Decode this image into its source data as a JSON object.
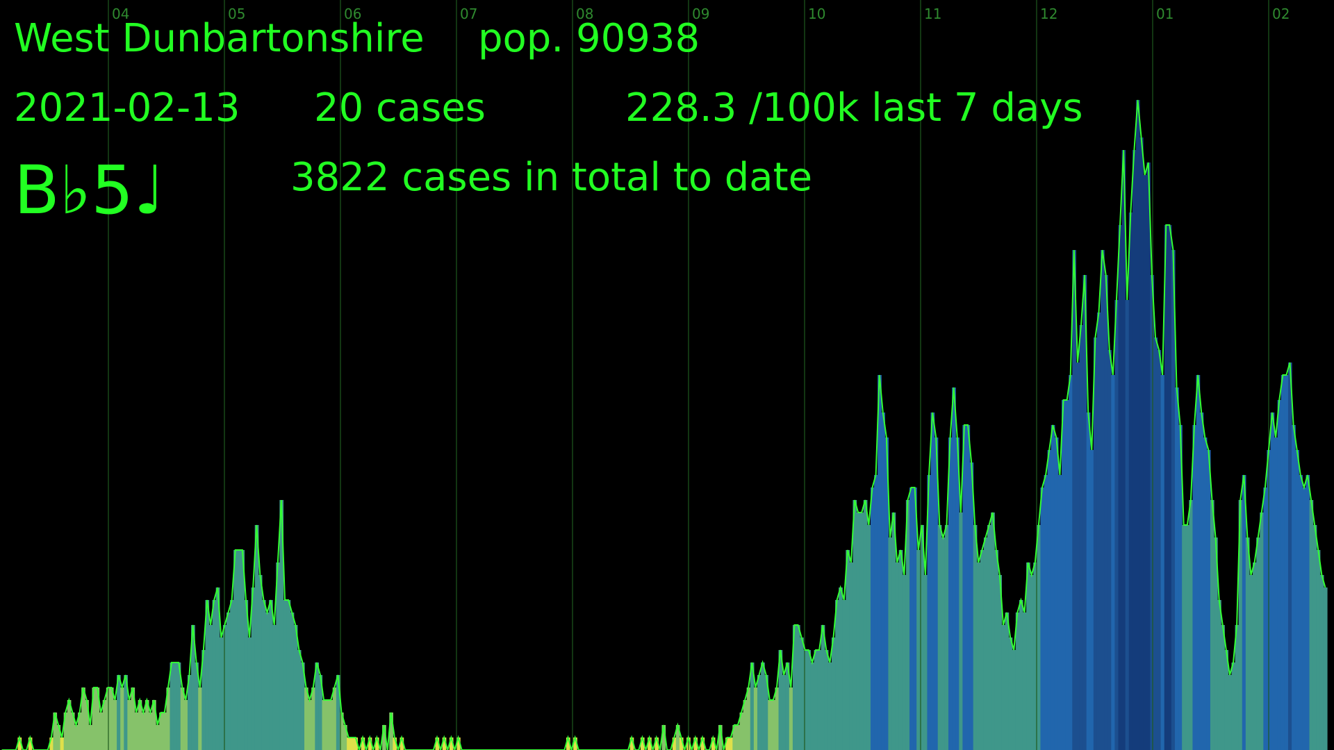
{
  "header": {
    "region": "West Dunbartonshire",
    "population": "pop. 90938",
    "date": "2021-02-13",
    "daily_cases": "20 cases",
    "rate": "228.3 /100k last 7 days",
    "total": "3822 cases in total to date",
    "note": "B♭5♩"
  },
  "colors": {
    "text": "#22ff22",
    "gridline": "#1f5a1f",
    "line": "#33ff33",
    "palette": [
      "#dfe04a",
      "#86c26a",
      "#3f978a",
      "#2166ad",
      "#143c7b",
      "#1c4f8f"
    ]
  },
  "chart_data": {
    "type": "bar",
    "month_ticks": [
      "04",
      "05",
      "06",
      "07",
      "08",
      "09",
      "10",
      "11",
      "12",
      "01",
      "02"
    ],
    "ylim": [
      0,
      60
    ],
    "grid": "vertical month lines",
    "series": [
      {
        "values": [
          0,
          0,
          0,
          0,
          0,
          1,
          0,
          0,
          1,
          0,
          0,
          0,
          0,
          0,
          1,
          3,
          2,
          1,
          3,
          4,
          3,
          2,
          3,
          5,
          4,
          2,
          5,
          5,
          3,
          4,
          5,
          5,
          4,
          6,
          5,
          6,
          4,
          5,
          3,
          4,
          3,
          4,
          3,
          4,
          2,
          3,
          3,
          5,
          7,
          7,
          7,
          5,
          4,
          6,
          10,
          7,
          5,
          8,
          12,
          10,
          12,
          13,
          9,
          10,
          11,
          12,
          16,
          16,
          16,
          12,
          9,
          13,
          18,
          14,
          12,
          11,
          12,
          10,
          15,
          20,
          12,
          12,
          11,
          10,
          8,
          7,
          5,
          4,
          5,
          7,
          6,
          4,
          4,
          4,
          5,
          6,
          3,
          2,
          1,
          1,
          1,
          0,
          1,
          0,
          1,
          0,
          1,
          0,
          2,
          0,
          3,
          1,
          0,
          1,
          0,
          0,
          0,
          0,
          0,
          0,
          0,
          0,
          0,
          1,
          0,
          1,
          0,
          1,
          0,
          1,
          0,
          0,
          0,
          0,
          0,
          0,
          0,
          0,
          0,
          0,
          0,
          0,
          0,
          0,
          0,
          0,
          0,
          0,
          0,
          0,
          0,
          0,
          0,
          0,
          0,
          0,
          0,
          0,
          0,
          0,
          1,
          0,
          1,
          0,
          0,
          0,
          0,
          0,
          0,
          0,
          0,
          0,
          0,
          0,
          0,
          0,
          0,
          0,
          1,
          0,
          0,
          1,
          0,
          1,
          0,
          1,
          0,
          2,
          0,
          0,
          1,
          2,
          1,
          0,
          1,
          0,
          1,
          0,
          1,
          0,
          0,
          1,
          0,
          2,
          0,
          1,
          1,
          2,
          2,
          3,
          4,
          5,
          7,
          5,
          6,
          7,
          6,
          4,
          4,
          5,
          8,
          6,
          7,
          5,
          10,
          10,
          9,
          8,
          8,
          7,
          8,
          8,
          10,
          8,
          7,
          9,
          12,
          13,
          12,
          16,
          15,
          20,
          19,
          19,
          20,
          18,
          21,
          22,
          30,
          27,
          25,
          17,
          19,
          15,
          16,
          14,
          20,
          21,
          21,
          16,
          18,
          14,
          22,
          27,
          25,
          18,
          17,
          18,
          25,
          29,
          25,
          19,
          26,
          26,
          23,
          18,
          15,
          16,
          17,
          18,
          19,
          16,
          14,
          10,
          11,
          9,
          8,
          11,
          12,
          11,
          15,
          14,
          15,
          18,
          21,
          22,
          24,
          26,
          25,
          22,
          28,
          28,
          30,
          40,
          31,
          34,
          38,
          27,
          24,
          33,
          35,
          40,
          38,
          32,
          30,
          36,
          42,
          48,
          36,
          43,
          48,
          52,
          49,
          46,
          47,
          38,
          33,
          32,
          30,
          42,
          42,
          40,
          29,
          26,
          18,
          18,
          20,
          26,
          30,
          27,
          25,
          24,
          20,
          17,
          12,
          10,
          8,
          6,
          7,
          10,
          20,
          22,
          17,
          14,
          15,
          17,
          19,
          21,
          24,
          27,
          25,
          28,
          30,
          30,
          31,
          26,
          24,
          22,
          21,
          22,
          20,
          18,
          16,
          14,
          13
        ]
      }
    ]
  }
}
